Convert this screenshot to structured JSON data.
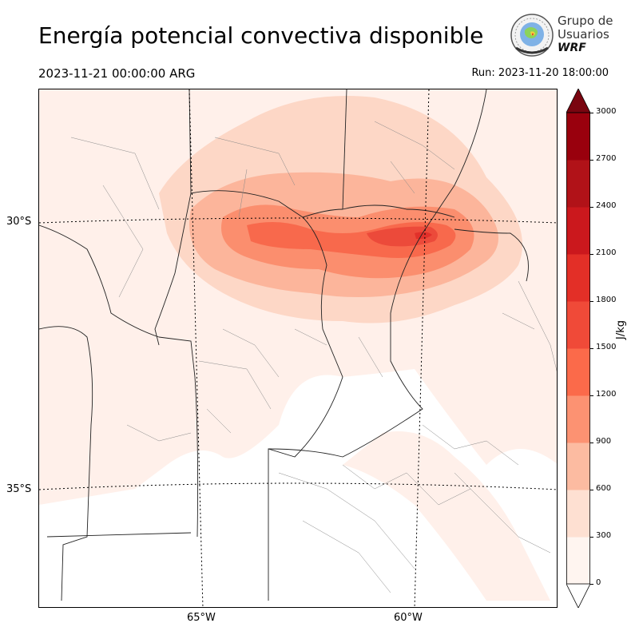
{
  "header": {
    "title": "Energía potencial convectiva disponible",
    "valid_time": "2023-11-21 00:00:00 ARG",
    "run_time": "Run: 2023-11-20 18:00:00"
  },
  "logo": {
    "line1": "Grupo de",
    "line2": "Usuarios",
    "line3": "WRF"
  },
  "map": {
    "lat_labels": [
      "30°S",
      "35°S"
    ],
    "lon_labels": [
      "65°W",
      "60°W"
    ]
  },
  "colorbar": {
    "unit": "J/kg",
    "ticks": [
      "0",
      "300",
      "600",
      "900",
      "1200",
      "1500",
      "1800",
      "2100",
      "2400",
      "2700",
      "3000"
    ],
    "colors": [
      "#fff5f0",
      "#fee0d2",
      "#fcbba1",
      "#fc9272",
      "#fb6a4a",
      "#f04a38",
      "#e32f27",
      "#cb181d",
      "#b11218",
      "#99000d",
      "#7a0510"
    ]
  }
}
